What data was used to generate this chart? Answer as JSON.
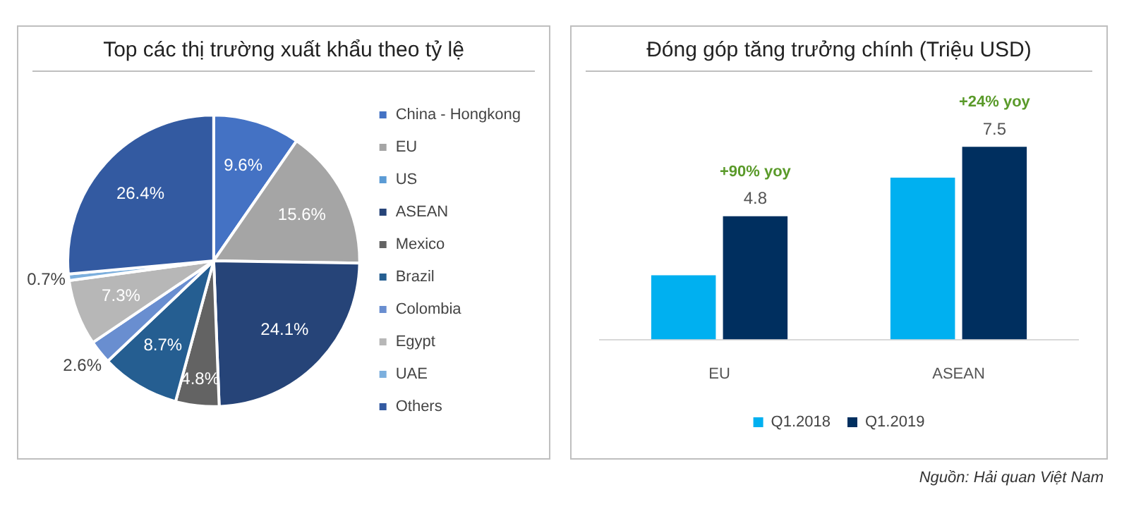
{
  "chart_data": [
    {
      "type": "pie",
      "title": "Top các thị trường xuất khẩu theo tỷ lệ",
      "legend": "right",
      "categories": [
        "China - Hongkong",
        "EU",
        "US",
        "ASEAN",
        "Mexico",
        "Brazil",
        "Colombia",
        "Egypt",
        "UAE",
        "Others"
      ],
      "values": [
        9.6,
        15.6,
        null,
        24.1,
        4.8,
        8.7,
        2.6,
        7.3,
        0.7,
        26.4
      ],
      "colors": [
        "#4472c4",
        "#a5a5a5",
        "#5b9bd5",
        "#264478",
        "#636363",
        "#255e91",
        "#698ed0",
        "#b7b7b7",
        "#7cafdd",
        "#335aa1"
      ],
      "value_labels": [
        "9.6%",
        "15.6%",
        null,
        "24.1%",
        "4.8%",
        "8.7%",
        "2.6%",
        "7.3%",
        "0.7%",
        "26.4%"
      ]
    },
    {
      "type": "bar",
      "title": "Đóng góp tăng trưởng chính (Triệu USD)",
      "legend": "bottom",
      "categories": [
        "EU",
        "ASEAN"
      ],
      "series": [
        {
          "name": "Q1.2018",
          "color": "#00b0f0",
          "values": [
            2.5,
            6.3
          ],
          "value_labels": [
            null,
            null
          ]
        },
        {
          "name": "Q1.2019",
          "color": "#002f5f",
          "values": [
            4.8,
            7.5
          ],
          "value_labels": [
            "4.8",
            "7.5"
          ]
        }
      ],
      "annotations": [
        {
          "text": "+90% yoy",
          "x": "EU",
          "y": 4.8
        },
        {
          "text": "+24% yoy",
          "x": "ASEAN",
          "y": 7.5
        },
        "Nguồn: Hải quan Việt Nam"
      ]
    }
  ]
}
